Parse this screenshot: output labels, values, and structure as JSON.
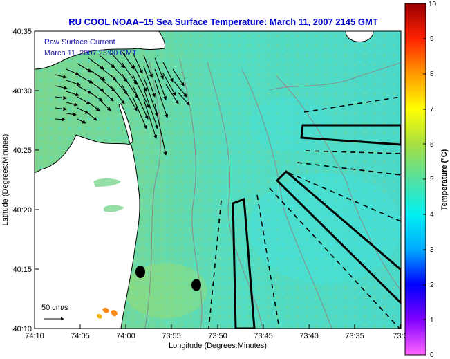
{
  "title": "RU COOL  NOAA–15  Sea Surface Temperature:  March 11, 2007 2145 GMT",
  "xlabel": "Longitude (Degrees:Minutes)",
  "ylabel": "Latitude (Degrees:Minutes)",
  "x_ticks": [
    "74:10",
    "74:05",
    "74:00",
    "73:55",
    "73:50",
    "73:45",
    "73:40",
    "73:35",
    "73:3"
  ],
  "y_ticks": [
    "40:35",
    "40:30",
    "40:25",
    "40:20",
    "40:15",
    "40:10"
  ],
  "overlay": {
    "line1": "Raw Surface Current",
    "line2": "March 11, 2007 23:00 GMT"
  },
  "scale_bar": {
    "label": "50 cm/s"
  },
  "colorbar": {
    "label": "Temperature (°C)",
    "ticks": [
      "0",
      "1",
      "2",
      "3",
      "4",
      "5",
      "6",
      "7",
      "8",
      "9",
      "10"
    ],
    "range": [
      0,
      10
    ]
  },
  "colors": {
    "title": "#0000cc",
    "ocean_base": "#55d8b0",
    "land": "#ffffff",
    "overlay_text": "#1a1aaa"
  }
}
